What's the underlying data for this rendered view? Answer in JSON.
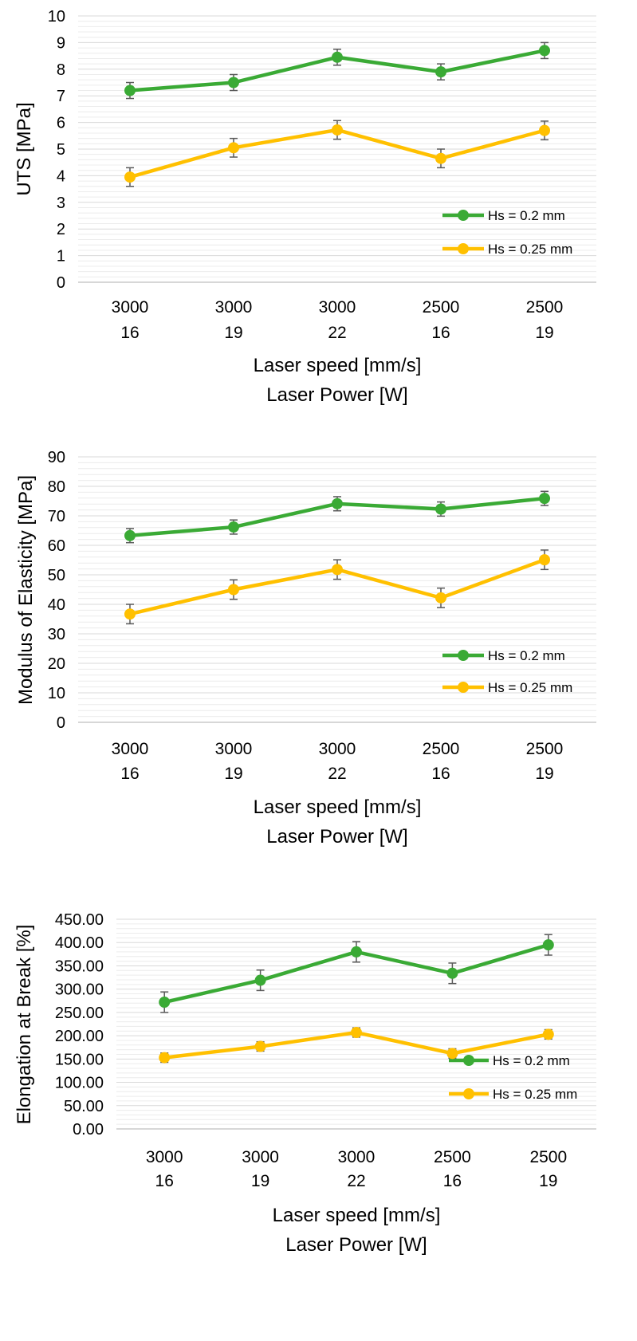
{
  "chart_data": [
    {
      "type": "line",
      "categories": [
        [
          "3000",
          "16"
        ],
        [
          "3000",
          "19"
        ],
        [
          "3000",
          "22"
        ],
        [
          "2500",
          "16"
        ],
        [
          "2500",
          "19"
        ]
      ],
      "xlabel": [
        "Laser speed [mm/s]",
        "Laser Power [W]"
      ],
      "ylabel": "UTS [MPa]",
      "ylim": [
        0,
        10
      ],
      "yticks": [
        "0",
        "1",
        "2",
        "3",
        "4",
        "5",
        "6",
        "7",
        "8",
        "9",
        "10"
      ],
      "grid": true,
      "legend_position": "lower-right",
      "series": [
        {
          "name": "Hs = 0.2 mm",
          "color": "#3aaa35",
          "values": [
            7.2,
            7.5,
            8.45,
            7.9,
            8.7
          ],
          "errors": [
            0.3,
            0.3,
            0.3,
            0.3,
            0.3
          ]
        },
        {
          "name": "Hs = 0.25 mm",
          "color": "#ffc000",
          "values": [
            3.95,
            5.05,
            5.72,
            4.65,
            5.7
          ],
          "errors": [
            0.35,
            0.35,
            0.35,
            0.35,
            0.35
          ]
        }
      ]
    },
    {
      "type": "line",
      "categories": [
        [
          "3000",
          "16"
        ],
        [
          "3000",
          "19"
        ],
        [
          "3000",
          "22"
        ],
        [
          "2500",
          "16"
        ],
        [
          "2500",
          "19"
        ]
      ],
      "xlabel": [
        "Laser speed [mm/s]",
        "Laser Power [W]"
      ],
      "ylabel": "Modulus of Elasticity [MPa]",
      "ylim": [
        0,
        90
      ],
      "yticks": [
        "0",
        "10",
        "20",
        "30",
        "40",
        "50",
        "60",
        "70",
        "80",
        "90"
      ],
      "grid": true,
      "legend_position": "lower-right",
      "series": [
        {
          "name": "Hs = 0.2 mm",
          "color": "#3aaa35",
          "values": [
            63.3,
            66.2,
            74.1,
            72.3,
            75.9
          ],
          "errors": [
            2.4,
            2.4,
            2.4,
            2.4,
            2.4
          ]
        },
        {
          "name": "Hs = 0.25 mm",
          "color": "#ffc000",
          "values": [
            36.7,
            45.0,
            51.8,
            42.2,
            55.1
          ],
          "errors": [
            3.3,
            3.3,
            3.3,
            3.3,
            3.3
          ]
        }
      ]
    },
    {
      "type": "line",
      "categories": [
        [
          "3000",
          "16"
        ],
        [
          "3000",
          "19"
        ],
        [
          "3000",
          "22"
        ],
        [
          "2500",
          "16"
        ],
        [
          "2500",
          "19"
        ]
      ],
      "xlabel": [
        "Laser speed [mm/s]",
        "Laser Power [W]"
      ],
      "ylabel": "Elongation at Break [%]",
      "ylim": [
        0,
        450
      ],
      "yticks": [
        "0.00",
        "50.00",
        "100.00",
        "150.00",
        "200.00",
        "250.00",
        "300.00",
        "350.00",
        "400.00",
        "450.00"
      ],
      "grid": true,
      "legend_position": "lower-right",
      "series": [
        {
          "name": "Hs = 0.2 mm",
          "color": "#3aaa35",
          "values": [
            272,
            319,
            380,
            334,
            395
          ],
          "errors": [
            22,
            22,
            22,
            22,
            22
          ]
        },
        {
          "name": "Hs = 0.25 mm",
          "color": "#ffc000",
          "values": [
            153,
            177,
            207,
            162,
            203
          ],
          "errors": [
            10,
            10,
            10,
            10,
            10
          ]
        }
      ]
    }
  ]
}
